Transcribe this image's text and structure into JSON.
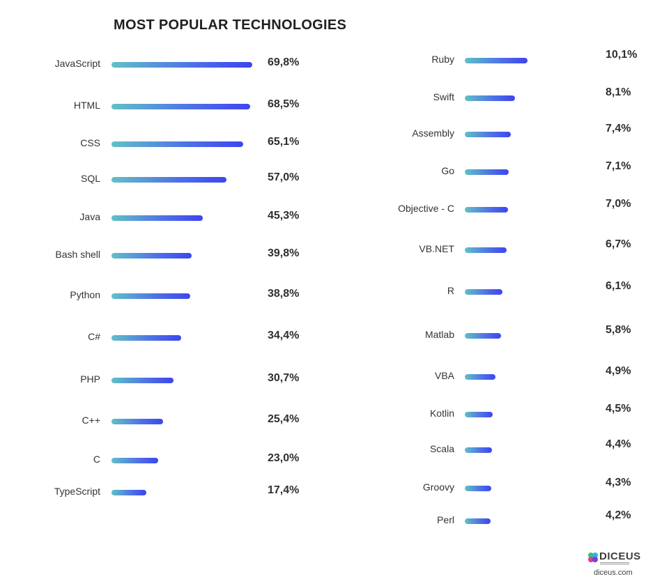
{
  "chart_data": {
    "type": "bar",
    "title": "MOST POPULAR TECHNOLOGIES",
    "unit": "%",
    "left_column": [
      {
        "category": "JavaScript",
        "value": 69.8,
        "label": "69,8%"
      },
      {
        "category": "HTML",
        "value": 68.5,
        "label": "68,5%"
      },
      {
        "category": "CSS",
        "value": 65.1,
        "label": "65,1%"
      },
      {
        "category": "SQL",
        "value": 57.0,
        "label": "57,0%"
      },
      {
        "category": "Java",
        "value": 45.3,
        "label": "45,3%"
      },
      {
        "category": "Bash shell",
        "value": 39.8,
        "label": "39,8%"
      },
      {
        "category": "Python",
        "value": 38.8,
        "label": "38,8%"
      },
      {
        "category": "C#",
        "value": 34.4,
        "label": "34,4%"
      },
      {
        "category": "PHP",
        "value": 30.7,
        "label": "30,7%"
      },
      {
        "category": "C++",
        "value": 25.4,
        "label": "25,4%"
      },
      {
        "category": "C",
        "value": 23.0,
        "label": "23,0%"
      },
      {
        "category": "TypeScript",
        "value": 17.4,
        "label": "17,4%"
      }
    ],
    "right_column": [
      {
        "category": "Ruby",
        "value": 10.1,
        "label": "10,1%"
      },
      {
        "category": "Swift",
        "value": 8.1,
        "label": "8,1%"
      },
      {
        "category": "Assembly",
        "value": 7.4,
        "label": "7,4%"
      },
      {
        "category": "Go",
        "value": 7.1,
        "label": "7,1%"
      },
      {
        "category": "Objective - C",
        "value": 7.0,
        "label": "7,0%"
      },
      {
        "category": "VB.NET",
        "value": 6.7,
        "label": "6,7%"
      },
      {
        "category": "R",
        "value": 6.1,
        "label": "6,1%"
      },
      {
        "category": "Matlab",
        "value": 5.8,
        "label": "5,8%"
      },
      {
        "category": "VBA",
        "value": 4.9,
        "label": "4,9%"
      },
      {
        "category": "Kotlin",
        "value": 4.5,
        "label": "4,5%"
      },
      {
        "category": "Scala",
        "value": 4.4,
        "label": "4,4%"
      },
      {
        "category": "Groovy",
        "value": 4.3,
        "label": "4,3%"
      },
      {
        "category": "Perl",
        "value": 4.2,
        "label": "4,2%"
      }
    ],
    "bar_gradient": [
      "#62c0c6",
      "#3d45f0"
    ],
    "grid": false
  },
  "brand": {
    "logo_text": "DICEUS",
    "domain": "diceus.com"
  }
}
